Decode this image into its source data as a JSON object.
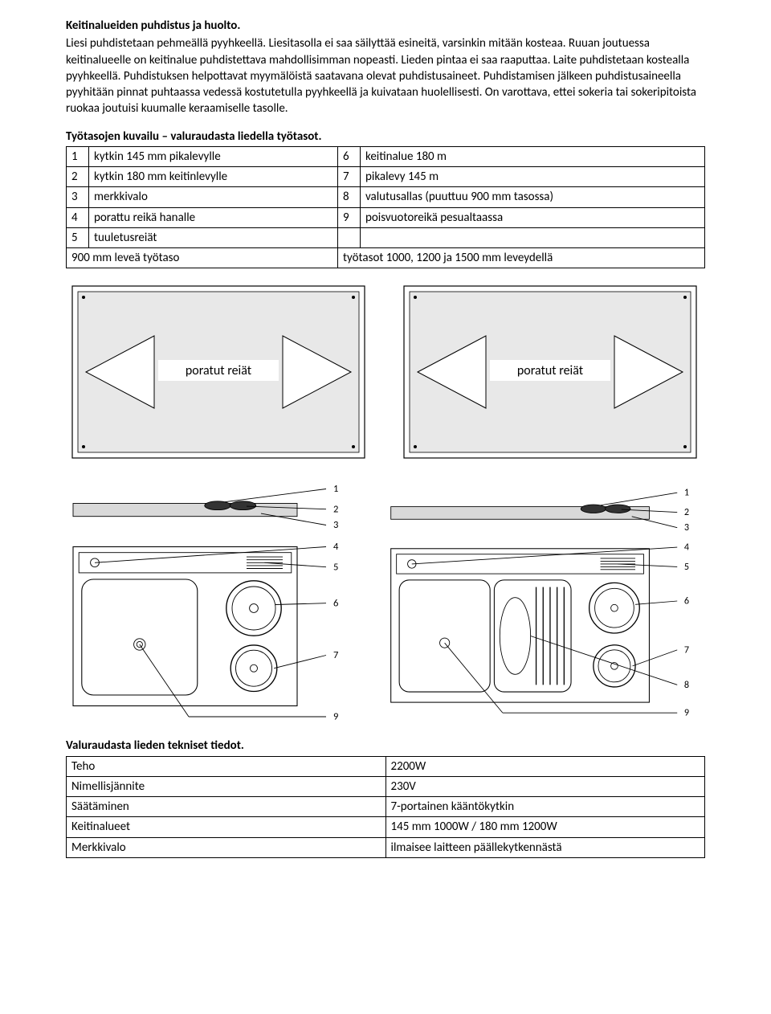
{
  "heading1": "Keitinalueiden puhdistus ja huolto.",
  "para1": "Liesi puhdistetaan pehmeällä pyyhkeellä. Liesitasolla ei saa säilyttää esineitä, varsinkin mitään kosteaa. Ruuan joutuessa keitinalueelle on keitinalue puhdistettava mahdollisimman nopeasti. Lieden pintaa ei saa raaputtaa. Laite puhdistetaan kostealla pyyhkeellä. Puhdistuksen helpottavat myymälöistä saatavana olevat puhdistusaineet. Puhdistamisen jälkeen puhdistusaineella pyyhitään pinnat puhtaassa vedessä kostutetulla pyyhkeellä ja kuivataan huolellisesti. On varottava, ettei sokeria tai sokeripitoista ruokaa joutuisi kuumalle keraamiselle tasolle.",
  "heading2": "Työtasojen kuvailu – valuraudasta liedella työtasot.",
  "table": {
    "rows": [
      {
        "n1": "1",
        "l1": "kytkin 145 mm pikalevylle",
        "n2": "6",
        "l2": "keitinalue 180 m"
      },
      {
        "n1": "2",
        "l1": "kytkin 180 mm keitinlevylle",
        "n2": "7",
        "l2": "pikalevy 145 m"
      },
      {
        "n1": "3",
        "l1": "merkkivalo",
        "n2": "8",
        "l2": "valutusallas (puuttuu 900 mm tasossa)"
      },
      {
        "n1": "4",
        "l1": "porattu reikä hanalle",
        "n2": "9",
        "l2": "poisvuotoreikä pesualtaassa"
      },
      {
        "n1": "5",
        "l1": "tuuletusreiät",
        "n2": "",
        "l2": ""
      },
      {
        "n1": "",
        "l1": "900 mm leveä työtaso",
        "n2": "",
        "l2": "työtasot 1000, 1200 ja 1500 mm leveydellä",
        "span1": true,
        "span2": true
      }
    ]
  },
  "diagram_labels": {
    "drilled_holes": "poratut reiät",
    "nums": [
      "1",
      "2",
      "3",
      "4",
      "5",
      "6",
      "7",
      "8",
      "9"
    ]
  },
  "heading3": "Valuraudasta lieden tekniset tiedot.",
  "specs": [
    {
      "k": "Teho",
      "v": "2200W"
    },
    {
      "k": "Nimellisjännite",
      "v": "230V"
    },
    {
      "k": "Säätäminen",
      "v": "7-portainen kääntökytkin"
    },
    {
      "k": "Keitinalueet",
      "v": "145 mm 1000W / 180 mm 1200W"
    },
    {
      "k": "Merkkivalo",
      "v": "ilmaisee laitteen päällekytkennästä"
    }
  ],
  "colors": {
    "line": "#000000",
    "fill": "#e4e4e4",
    "white": "#ffffff"
  }
}
